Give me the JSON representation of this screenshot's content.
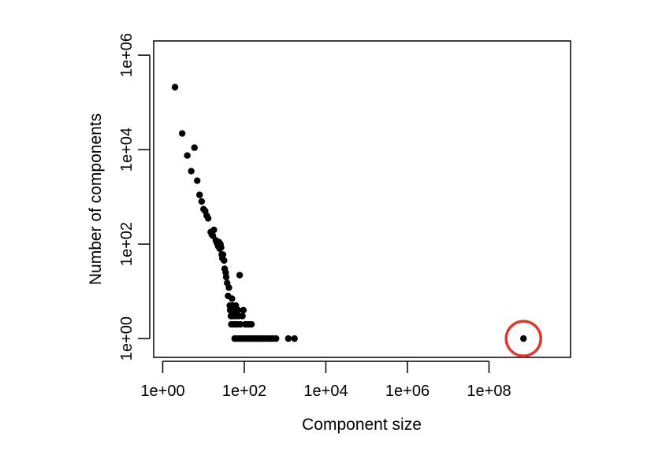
{
  "chart_data": {
    "type": "scatter",
    "title": "",
    "xlabel": "Component size",
    "ylabel": "Number of components",
    "x_scale": "log10",
    "y_scale": "log10",
    "xlim": [
      0.6,
      10000000000
    ],
    "ylim": [
      0.4,
      2000000
    ],
    "x_ticks": [
      {
        "value": 1,
        "label": "1e+00"
      },
      {
        "value": 100,
        "label": "1e+02"
      },
      {
        "value": 10000,
        "label": "1e+04"
      },
      {
        "value": 1000000,
        "label": "1e+06"
      },
      {
        "value": 100000000,
        "label": "1e+08"
      }
    ],
    "y_ticks": [
      {
        "value": 1,
        "label": "1e+00"
      },
      {
        "value": 100,
        "label": "1e+02"
      },
      {
        "value": 10000,
        "label": "1e+04"
      },
      {
        "value": 1000000,
        "label": "1e+06"
      }
    ],
    "grid": false,
    "point_color": "#000000",
    "highlight_color": "#e0392b",
    "highlighted_point": {
      "x": 700000000,
      "y": 1
    },
    "points": [
      [
        2,
        210000
      ],
      [
        3,
        22000
      ],
      [
        4,
        7500
      ],
      [
        5,
        3500
      ],
      [
        6,
        11000
      ],
      [
        7,
        2200
      ],
      [
        8,
        1100
      ],
      [
        9,
        800
      ],
      [
        10,
        550
      ],
      [
        11,
        500
      ],
      [
        12,
        400
      ],
      [
        13,
        350
      ],
      [
        15,
        180
      ],
      [
        16,
        160
      ],
      [
        17,
        150
      ],
      [
        18,
        200
      ],
      [
        20,
        120
      ],
      [
        21,
        110
      ],
      [
        22,
        100
      ],
      [
        23,
        90
      ],
      [
        24,
        110
      ],
      [
        25,
        80
      ],
      [
        26,
        100
      ],
      [
        27,
        85
      ],
      [
        28,
        60
      ],
      [
        29,
        50
      ],
      [
        30,
        60
      ],
      [
        32,
        45
      ],
      [
        33,
        30
      ],
      [
        35,
        25
      ],
      [
        36,
        20
      ],
      [
        38,
        15
      ],
      [
        40,
        8
      ],
      [
        42,
        12
      ],
      [
        44,
        5
      ],
      [
        45,
        4
      ],
      [
        47,
        3
      ],
      [
        48,
        2
      ],
      [
        50,
        7
      ],
      [
        52,
        5
      ],
      [
        53,
        3
      ],
      [
        55,
        2
      ],
      [
        57,
        4
      ],
      [
        58,
        1
      ],
      [
        60,
        3
      ],
      [
        62,
        5
      ],
      [
        63,
        2
      ],
      [
        65,
        1
      ],
      [
        67,
        2
      ],
      [
        70,
        4
      ],
      [
        72,
        3
      ],
      [
        75,
        1
      ],
      [
        77,
        22
      ],
      [
        80,
        2
      ],
      [
        85,
        1
      ],
      [
        90,
        3
      ],
      [
        95,
        4
      ],
      [
        100,
        1
      ],
      [
        105,
        2
      ],
      [
        110,
        1
      ],
      [
        120,
        2
      ],
      [
        125,
        1
      ],
      [
        130,
        2
      ],
      [
        140,
        1
      ],
      [
        150,
        2
      ],
      [
        160,
        1
      ],
      [
        180,
        1
      ],
      [
        200,
        1
      ],
      [
        220,
        1
      ],
      [
        250,
        1
      ],
      [
        280,
        1
      ],
      [
        300,
        1
      ],
      [
        350,
        1
      ],
      [
        400,
        1
      ],
      [
        450,
        1
      ],
      [
        500,
        1
      ],
      [
        600,
        1
      ],
      [
        1200,
        1
      ],
      [
        1700,
        1
      ],
      [
        700000000,
        1
      ]
    ]
  }
}
